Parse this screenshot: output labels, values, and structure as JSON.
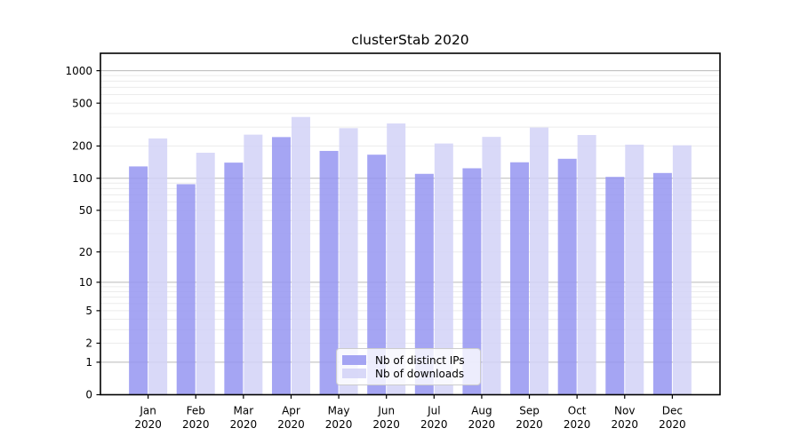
{
  "chart_data": {
    "type": "bar",
    "title": "clusterStab 2020",
    "categories": [
      "Jan",
      "Feb",
      "Mar",
      "Apr",
      "May",
      "Jun",
      "Jul",
      "Aug",
      "Sep",
      "Oct",
      "Nov",
      "Dec"
    ],
    "x_year": "2020",
    "series": [
      {
        "name": "Nb of distinct IPs",
        "color": "#9595f1",
        "fill_opacity": 0.85,
        "values": [
          129,
          88,
          140,
          242,
          180,
          166,
          110,
          124,
          141,
          152,
          103,
          112
        ]
      },
      {
        "name": "Nb of downloads",
        "color": "#d2d2f7",
        "fill_opacity": 0.85,
        "values": [
          235,
          173,
          255,
          372,
          293,
          324,
          211,
          243,
          297,
          253,
          206,
          203
        ]
      }
    ],
    "y_ticks": [
      0,
      1,
      2,
      5,
      10,
      20,
      50,
      100,
      200,
      500,
      1000
    ],
    "y_scale": "log1p",
    "ylim": [
      0,
      1450
    ],
    "xlabel": "",
    "ylabel": "",
    "grid": "horizontal-both-minor-and-major",
    "legend_position": "lower-center-inside"
  }
}
